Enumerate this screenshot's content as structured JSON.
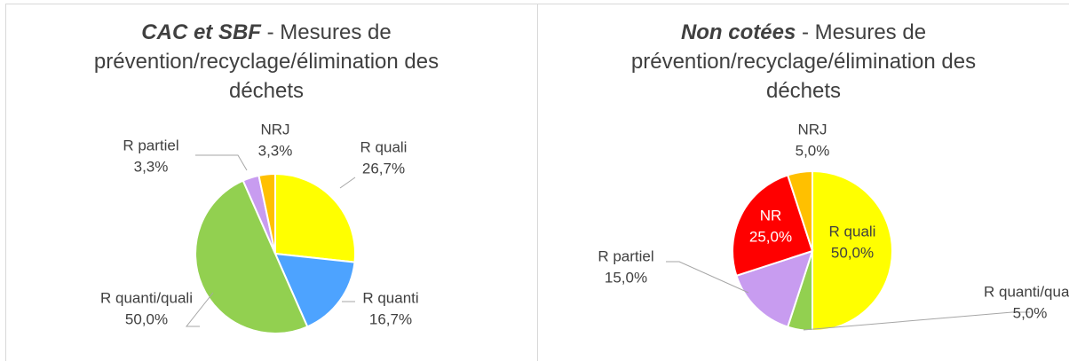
{
  "chart_data": [
    {
      "type": "pie",
      "title_emphasis": "CAC et SBF",
      "title": "- Mesures de prévention/recyclage/élimination des déchets",
      "categories": [
        "R quali",
        "R quanti",
        "R quanti/quali",
        "R partiel",
        "NRJ"
      ],
      "values": [
        26.7,
        16.7,
        50.0,
        3.3,
        3.3
      ],
      "value_labels": [
        "26,7%",
        "16,7%",
        "50,0%",
        "3,3%",
        "3,3%"
      ],
      "colors": [
        "#ffff00",
        "#4da3ff",
        "#92d050",
        "#c89cf0",
        "#ffc000"
      ]
    },
    {
      "type": "pie",
      "title_emphasis": "Non cotées",
      "title": "- Mesures de prévention/recyclage/élimination des déchets",
      "categories": [
        "R quali",
        "R quanti/quali",
        "R partiel",
        "NR",
        "NRJ"
      ],
      "values": [
        50.0,
        5.0,
        15.0,
        25.0,
        5.0
      ],
      "value_labels": [
        "50,0%",
        "5,0%",
        "15,0%",
        "25,0%",
        "5,0%"
      ],
      "colors": [
        "#ffff00",
        "#92d050",
        "#c89cf0",
        "#ff0000",
        "#ffc000"
      ]
    }
  ]
}
